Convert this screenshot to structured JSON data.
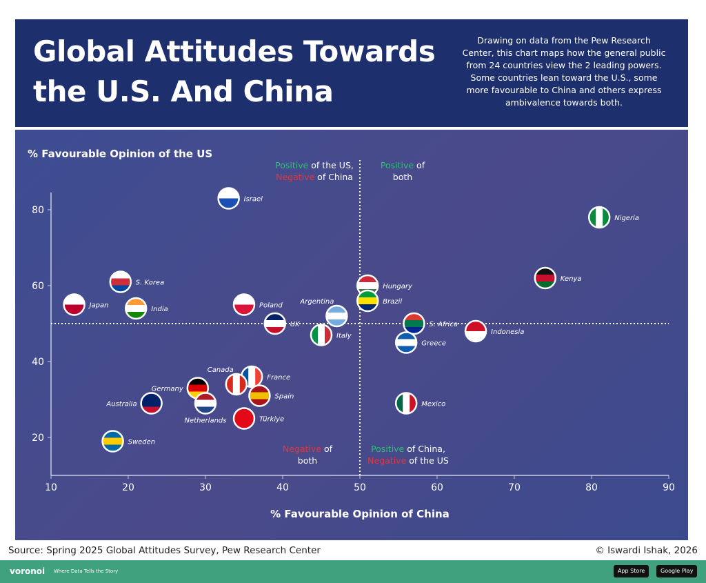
{
  "header": {
    "title": "Global Attitudes Towards the U.S. And China",
    "description": "Drawing on data from the Pew Research Center, this chart maps how the general public from 24 countries view the 2 leading powers. Some countries lean toward the U.S., some more favourable to China and others express ambivalence towards both."
  },
  "footer": {
    "source": "Source: Spring 2025 Global Attitudes Survey, Pew Research Center",
    "credit": "© Iswardi Ishak, 2026",
    "brand": "voronoi",
    "tagline": "Where Data Tells the Story",
    "app_store": "App Store",
    "google_play": "Google Play"
  },
  "colors": {
    "positive": "#2fbf71",
    "negative": "#e8343a",
    "text": "#ffffff"
  },
  "chart_data": {
    "type": "scatter",
    "xlabel": "% Favourable Opinion of China",
    "ylabel": "% Favourable Opinion of the US",
    "xlim": [
      10,
      90
    ],
    "ylim": [
      10,
      90
    ],
    "xticks": [
      10,
      20,
      30,
      40,
      50,
      60,
      70,
      80,
      90
    ],
    "yticks": [
      20,
      40,
      60,
      80
    ],
    "grid": false,
    "reference_lines": {
      "x": 50,
      "y": 50
    },
    "quadrants": [
      {
        "parts": [
          [
            "Positive",
            "positive"
          ],
          [
            " of the US,",
            "text"
          ],
          [
            "\n",
            ""
          ],
          [
            "Negative",
            "negative"
          ],
          [
            " of China",
            "text"
          ]
        ],
        "position": "top-left"
      },
      {
        "parts": [
          [
            "Positive",
            "positive"
          ],
          [
            " of",
            "text"
          ],
          [
            "\n",
            ""
          ],
          [
            "both",
            "text"
          ]
        ],
        "position": "top-right"
      },
      {
        "parts": [
          [
            "Negative",
            "negative"
          ],
          [
            " of",
            "text"
          ],
          [
            "\n",
            ""
          ],
          [
            "both",
            "text"
          ]
        ],
        "position": "bottom-left"
      },
      {
        "parts": [
          [
            "Positive",
            "positive"
          ],
          [
            " of China,",
            "text"
          ],
          [
            "\n",
            ""
          ],
          [
            "Negative",
            "negative"
          ],
          [
            " of the US",
            "text"
          ]
        ],
        "position": "bottom-right"
      }
    ],
    "points": [
      {
        "country": "Israel",
        "x": 33,
        "y": 83,
        "flag": [
          "#ffffff",
          "#1a4fb5"
        ],
        "label": "right"
      },
      {
        "country": "Nigeria",
        "x": 81,
        "y": 78,
        "flag": [
          "#0a8a3c",
          "#ffffff",
          "#0a8a3c"
        ],
        "vertical": true,
        "label": "right"
      },
      {
        "country": "Kenya",
        "x": 74,
        "y": 62,
        "flag": [
          "#111111",
          "#c8102e",
          "#0a6b2e"
        ],
        "label": "right"
      },
      {
        "country": "S. Korea",
        "x": 19,
        "y": 61,
        "flag": [
          "#ffffff",
          "#cd2e3a",
          "#0047a0"
        ],
        "label": "right"
      },
      {
        "country": "Japan",
        "x": 13,
        "y": 55,
        "flag": [
          "#ffffff",
          "#bc002d"
        ],
        "label": "right"
      },
      {
        "country": "India",
        "x": 21,
        "y": 54,
        "flag": [
          "#ff9933",
          "#ffffff",
          "#138808"
        ],
        "label": "right"
      },
      {
        "country": "Poland",
        "x": 35,
        "y": 55,
        "flag": [
          "#ffffff",
          "#dc143c"
        ],
        "label": "right"
      },
      {
        "country": "UK",
        "x": 39,
        "y": 50,
        "flag": [
          "#012169",
          "#ffffff",
          "#c8102e"
        ],
        "label": "right"
      },
      {
        "country": "Argentina",
        "x": 47,
        "y": 52,
        "flag": [
          "#74acdf",
          "#ffffff",
          "#74acdf"
        ],
        "label": "above-left"
      },
      {
        "country": "Hungary",
        "x": 51,
        "y": 60,
        "flag": [
          "#ce2939",
          "#ffffff",
          "#477050"
        ],
        "label": "right"
      },
      {
        "country": "Brazil",
        "x": 51,
        "y": 56,
        "flag": [
          "#009c3b",
          "#ffdf00",
          "#002776"
        ],
        "label": "right"
      },
      {
        "country": "Italy",
        "x": 45,
        "y": 47,
        "flag": [
          "#009246",
          "#ffffff",
          "#ce2b37"
        ],
        "vertical": true,
        "label": "right"
      },
      {
        "country": "S. Africa",
        "x": 57,
        "y": 50,
        "flag": [
          "#de3831",
          "#007a4d",
          "#002395"
        ],
        "label": "right"
      },
      {
        "country": "Greece",
        "x": 56,
        "y": 45,
        "flag": [
          "#0d5eaf",
          "#ffffff",
          "#0d5eaf"
        ],
        "label": "right"
      },
      {
        "country": "Indonesia",
        "x": 65,
        "y": 48,
        "flag": [
          "#ce1126",
          "#ffffff"
        ],
        "label": "right"
      },
      {
        "country": "Mexico",
        "x": 56,
        "y": 29,
        "flag": [
          "#006847",
          "#ffffff",
          "#ce1126"
        ],
        "vertical": true,
        "label": "right"
      },
      {
        "country": "France",
        "x": 36,
        "y": 36,
        "flag": [
          "#0055a4",
          "#ffffff",
          "#ef4135"
        ],
        "vertical": true,
        "label": "right"
      },
      {
        "country": "Canada",
        "x": 34,
        "y": 34,
        "flag": [
          "#d52b1e",
          "#ffffff",
          "#d52b1e"
        ],
        "vertical": true,
        "label": "above-left"
      },
      {
        "country": "Germany",
        "x": 29,
        "y": 33,
        "flag": [
          "#000000",
          "#dd0000",
          "#ffce00"
        ],
        "label": "left"
      },
      {
        "country": "Spain",
        "x": 37,
        "y": 31,
        "flag": [
          "#aa151b",
          "#f1bf00",
          "#aa151b"
        ],
        "label": "right"
      },
      {
        "country": "Netherlands",
        "x": 30,
        "y": 29,
        "flag": [
          "#ae1c28",
          "#ffffff",
          "#21468b"
        ],
        "label": "below"
      },
      {
        "country": "Australia",
        "x": 23,
        "y": 29,
        "flag": [
          "#012169",
          "#012169",
          "#c8102e"
        ],
        "label": "left"
      },
      {
        "country": "Türkiye",
        "x": 35,
        "y": 25,
        "flag": [
          "#e30a17",
          "#e30a17"
        ],
        "label": "right"
      },
      {
        "country": "Sweden",
        "x": 18,
        "y": 19,
        "flag": [
          "#006aa7",
          "#fecc00",
          "#006aa7"
        ],
        "label": "right"
      }
    ]
  }
}
